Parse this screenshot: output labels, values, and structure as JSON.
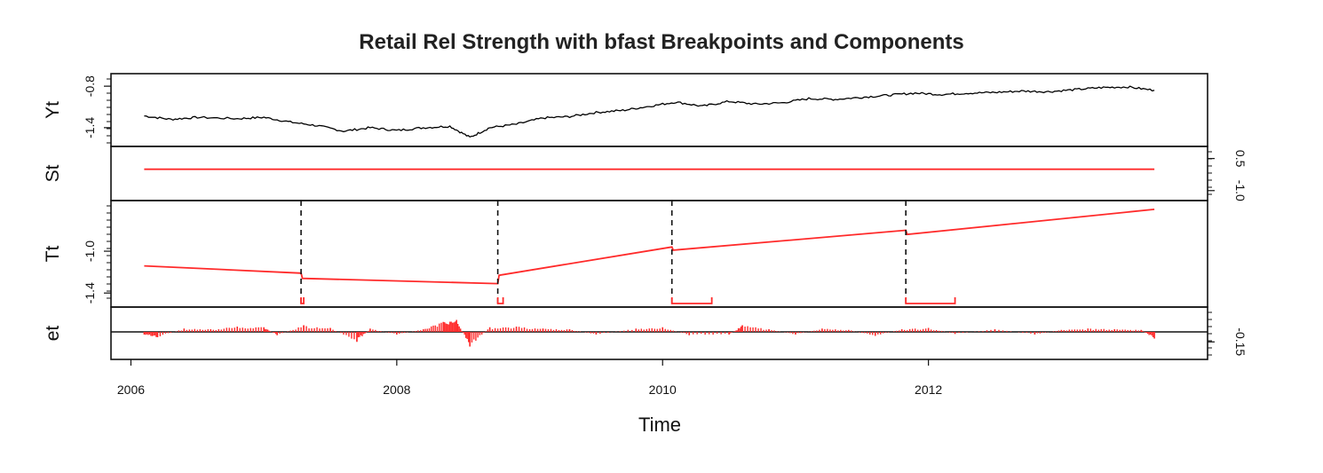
{
  "chart_data": {
    "type": "line",
    "title": "Retail Rel Strength with bfast Breakpoints and Components",
    "xlabel": "Time",
    "xlim": [
      2005.85,
      2014.1
    ],
    "x_ticks": [
      2006,
      2008,
      2010,
      2012
    ],
    "x_tick_labels": [
      "2006",
      "2008",
      "2010",
      "2012"
    ],
    "series_color": "#000000",
    "component_color": "#ff2a2a",
    "grid": false,
    "legend": "none",
    "panels": [
      {
        "name": "Yt",
        "ylim": [
          -1.62,
          -0.67
        ],
        "left_ticks": [
          -1.4,
          -0.8
        ],
        "left_tick_labels": [
          "-1.4",
          "-0.8"
        ],
        "series": [
          {
            "x": [
              2006.1,
              2006.3,
              2006.5,
              2006.8,
              2007.0,
              2007.2,
              2007.4,
              2007.6,
              2007.8,
              2008.0,
              2008.2,
              2008.4,
              2008.55,
              2008.7,
              2008.9,
              2009.1,
              2009.3,
              2009.5,
              2009.7,
              2009.9,
              2010.1,
              2010.3,
              2010.5,
              2010.7,
              2010.9,
              2011.1,
              2011.3,
              2011.5,
              2011.7,
              2011.9,
              2012.1,
              2012.3,
              2012.5,
              2012.7,
              2012.9,
              2013.1,
              2013.3,
              2013.5,
              2013.7
            ],
            "y": [
              -1.23,
              -1.28,
              -1.25,
              -1.27,
              -1.25,
              -1.32,
              -1.37,
              -1.45,
              -1.4,
              -1.44,
              -1.4,
              -1.38,
              -1.54,
              -1.4,
              -1.35,
              -1.26,
              -1.24,
              -1.18,
              -1.15,
              -1.09,
              -1.03,
              -1.09,
              -1.02,
              -1.06,
              -1.04,
              -0.98,
              -0.99,
              -0.96,
              -0.93,
              -0.9,
              -0.92,
              -0.9,
              -0.89,
              -0.87,
              -0.88,
              -0.85,
              -0.82,
              -0.81,
              -0.86
            ]
          }
        ]
      },
      {
        "name": "St",
        "ylim": [
          -1.3,
          0.9
        ],
        "right_ticks": [
          -1.0,
          0.5
        ],
        "right_tick_labels": [
          "-1.0",
          "0.5"
        ],
        "series": [
          {
            "x": [
              2006.1,
              2013.7
            ],
            "y": [
              0.0,
              0.0
            ]
          }
        ]
      },
      {
        "name": "Tt",
        "ylim": [
          -1.5,
          -0.55
        ],
        "left_ticks": [
          -1.4,
          -1.0
        ],
        "left_tick_labels": [
          "-1.4",
          "-1.0"
        ],
        "series": [
          {
            "x": [
              2006.1,
              2007.28,
              2007.29,
              2008.76,
              2008.77,
              2010.07,
              2010.08,
              2011.83,
              2011.84,
              2013.7
            ],
            "y": [
              -1.14,
              -1.21,
              -1.26,
              -1.31,
              -1.23,
              -0.96,
              -0.99,
              -0.8,
              -0.84,
              -0.6
            ]
          }
        ],
        "breakpoints": [
          2007.28,
          2008.76,
          2010.07,
          2011.83
        ],
        "ci_intervals": [
          [
            2007.28,
            2007.3
          ],
          [
            2008.76,
            2008.8
          ],
          [
            2010.07,
            2010.37
          ],
          [
            2011.83,
            2012.2
          ]
        ]
      },
      {
        "name": "et",
        "ylim": [
          -0.36,
          0.32
        ],
        "right_ticks": [
          -0.15
        ],
        "right_tick_labels": [
          "-0.15"
        ],
        "bars": {
          "x": [
            2006.1,
            2006.2,
            2006.4,
            2006.6,
            2006.8,
            2007.0,
            2007.1,
            2007.3,
            2007.5,
            2007.7,
            2007.8,
            2008.0,
            2008.2,
            2008.35,
            2008.45,
            2008.55,
            2008.7,
            2008.9,
            2009.1,
            2009.3,
            2009.5,
            2009.8,
            2010.0,
            2010.2,
            2010.5,
            2010.6,
            2010.8,
            2011.0,
            2011.2,
            2011.4,
            2011.6,
            2011.8,
            2012.0,
            2012.2,
            2012.5,
            2012.8,
            2013.0,
            2013.2,
            2013.4,
            2013.6,
            2013.7
          ],
          "y": [
            -0.04,
            -0.08,
            0.05,
            0.04,
            0.08,
            0.07,
            -0.05,
            0.1,
            0.06,
            -0.15,
            0.05,
            -0.04,
            0.04,
            0.15,
            0.18,
            -0.22,
            0.07,
            0.08,
            0.05,
            0.04,
            -0.04,
            0.05,
            0.07,
            -0.05,
            -0.04,
            0.1,
            0.04,
            -0.04,
            0.05,
            0.03,
            -0.06,
            0.04,
            0.06,
            -0.03,
            0.04,
            -0.04,
            0.03,
            0.05,
            0.04,
            0.03,
            -0.1
          ]
        }
      }
    ]
  }
}
